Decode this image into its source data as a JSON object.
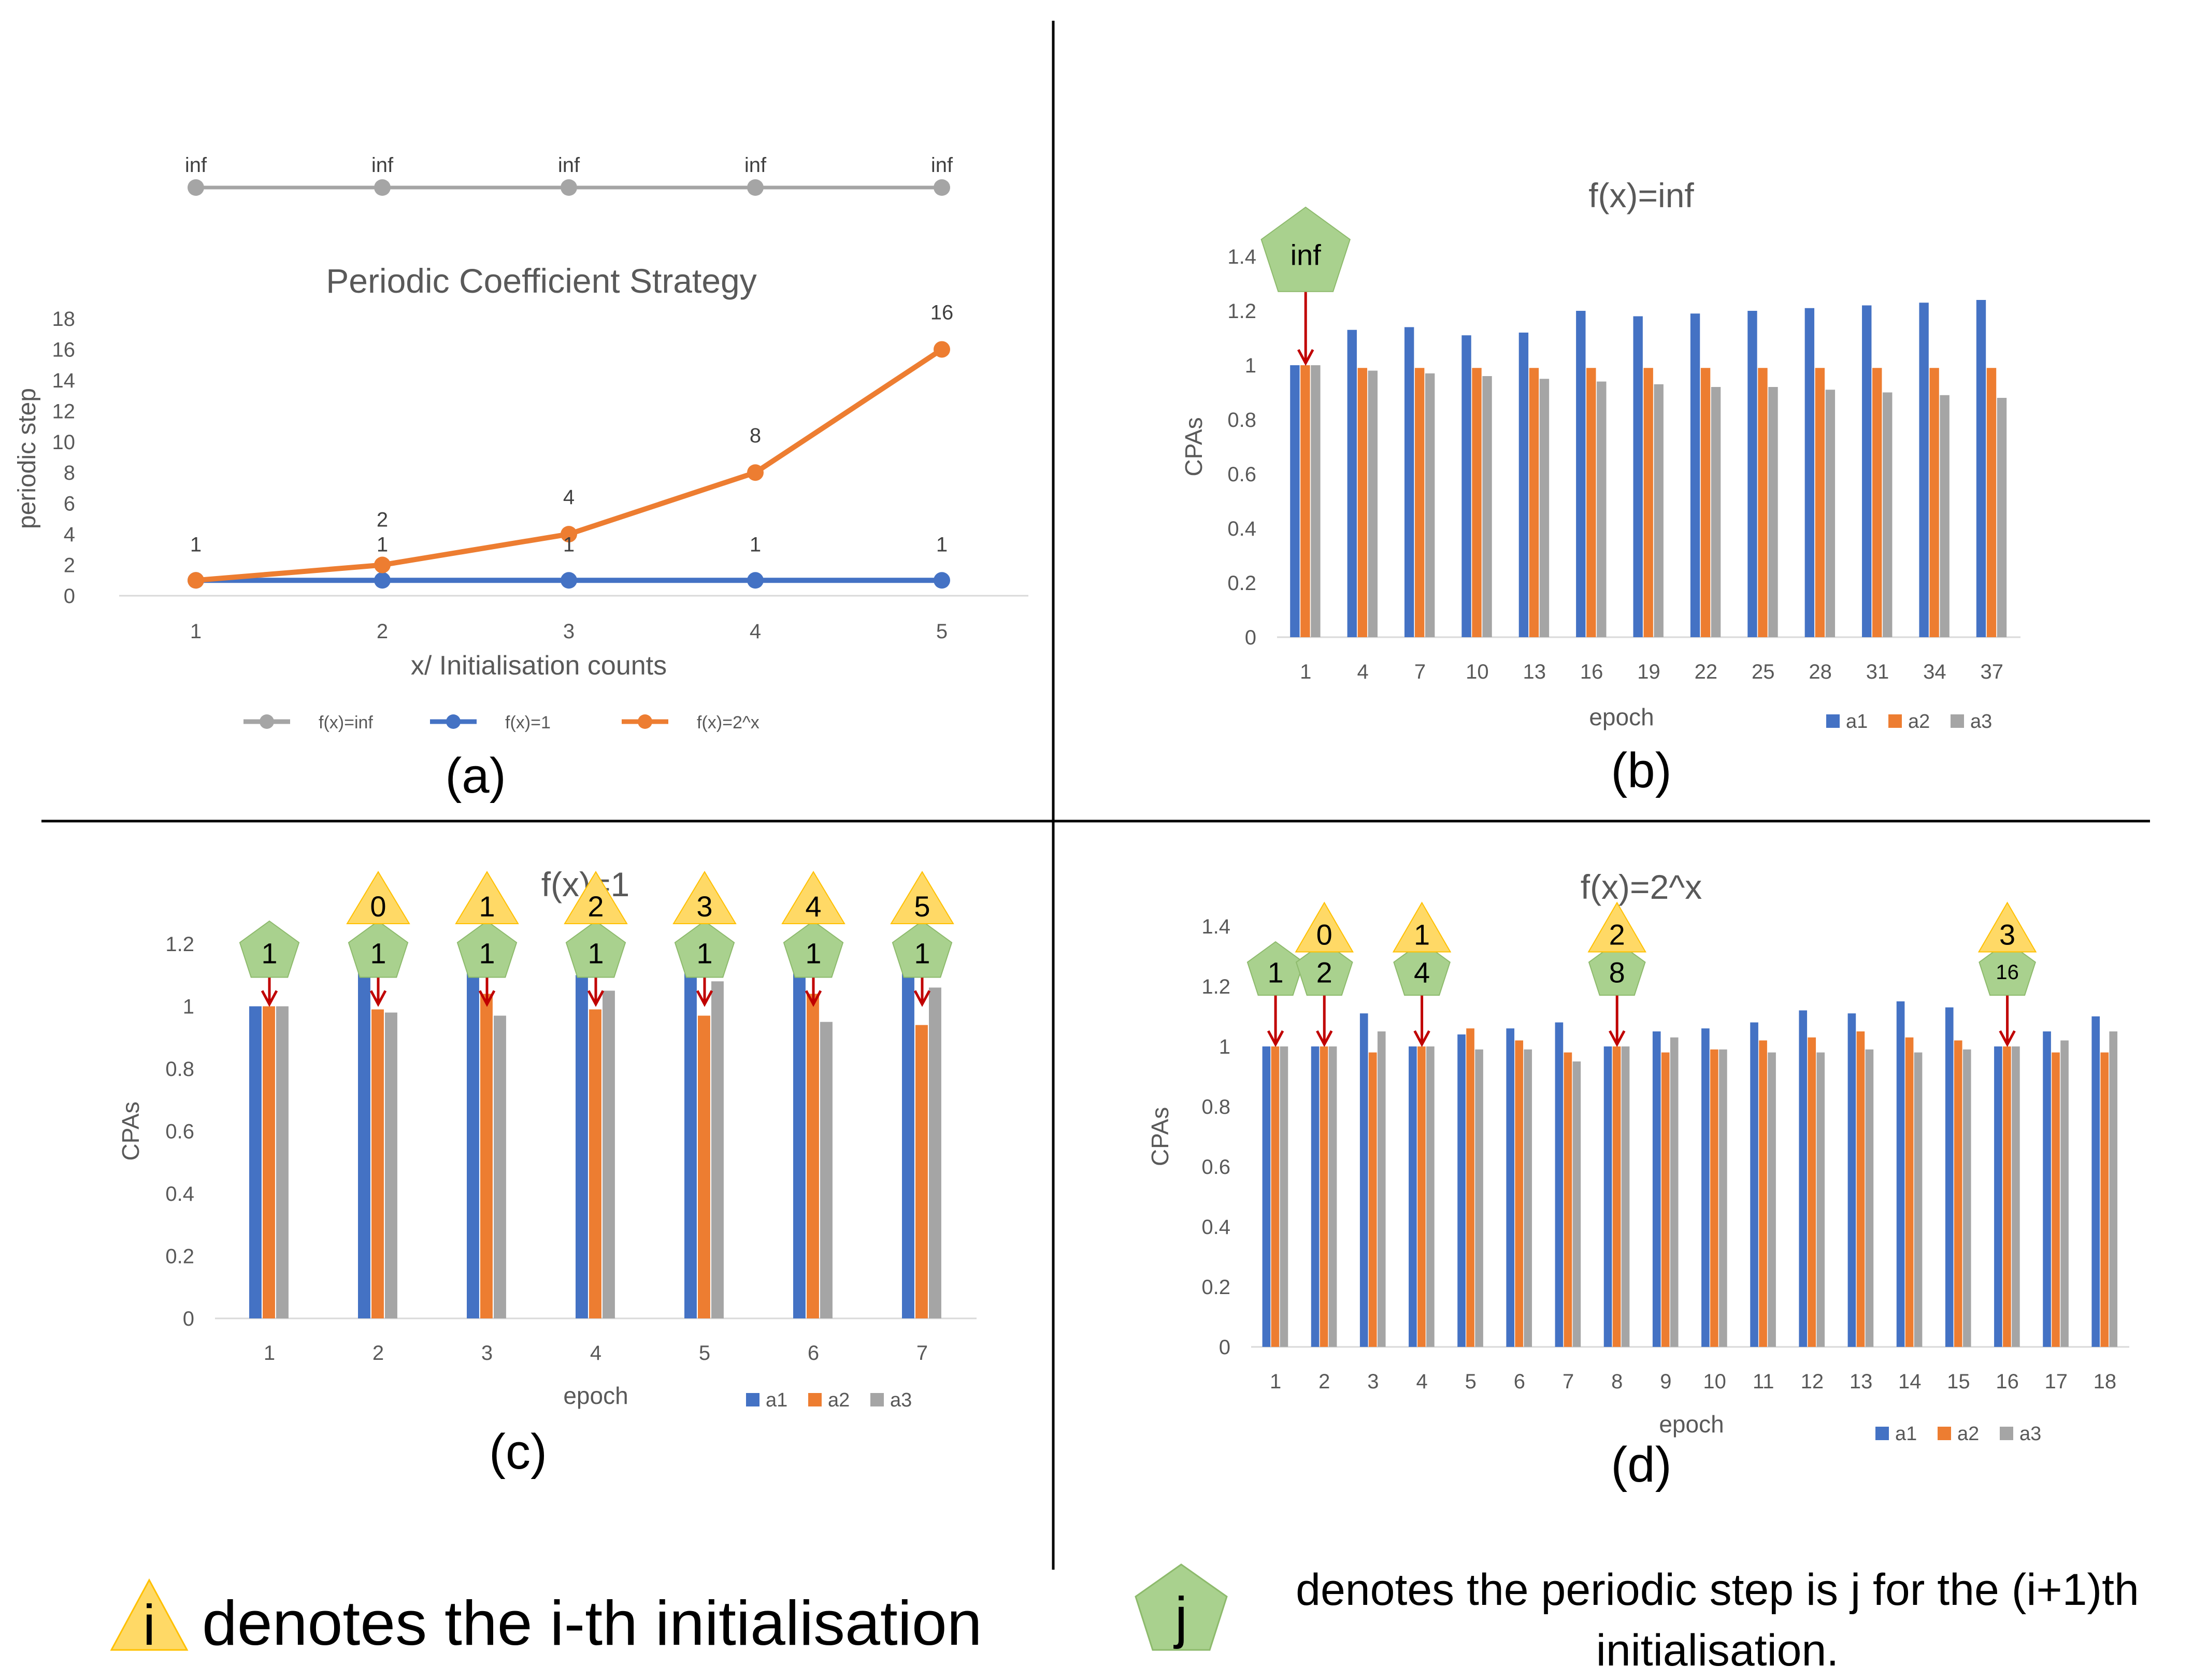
{
  "panel_labels": {
    "a": "(a)",
    "b": "(b)",
    "c": "(c)",
    "d": "(d)"
  },
  "legend": {
    "triangle_symbol": "i",
    "triangle_text": "denotes the i-th initialisation",
    "pentagon_symbol": "j",
    "pentagon_text_line1": "denotes the periodic step is j for the (i+1)th",
    "pentagon_text_line2": "initialisation."
  },
  "colors": {
    "a1": "#4472C4",
    "a2": "#ED7D31",
    "a3": "#A5A5A5",
    "arrow": "#C00000",
    "triangle": "#FFD966",
    "pentagon": "#A9D18E",
    "axis_text": "#595959"
  },
  "chart_data": [
    {
      "type": "line",
      "title": "Periodic Coefficient Strategy",
      "xlabel": "x/ Initialisation counts",
      "ylabel": "periodic step",
      "x": [
        1,
        2,
        3,
        4,
        5
      ],
      "ylim": [
        0,
        18
      ],
      "yticks": [
        0,
        2,
        4,
        6,
        8,
        10,
        12,
        14,
        16,
        18
      ],
      "series": [
        {
          "name": "f(x)=inf",
          "values": [
            null,
            null,
            null,
            null,
            null
          ],
          "labels": [
            "inf",
            "inf",
            "inf",
            "inf",
            "inf"
          ],
          "color": "#A5A5A5"
        },
        {
          "name": "f(x)=1",
          "values": [
            1,
            1,
            1,
            1,
            1
          ],
          "labels": [
            "1",
            "1",
            "1",
            "1",
            "1"
          ],
          "color": "#4472C4"
        },
        {
          "name": "f(x)=2^x",
          "values": [
            1,
            2,
            4,
            8,
            16
          ],
          "labels": [
            "1",
            "2",
            "4",
            "8",
            "16"
          ],
          "color": "#ED7D31"
        }
      ]
    },
    {
      "type": "bar",
      "title": "f(x)=inf",
      "xlabel": "epoch",
      "ylabel": "CPAs",
      "categories": [
        "1",
        "4",
        "7",
        "10",
        "13",
        "16",
        "19",
        "22",
        "25",
        "28",
        "31",
        "34",
        "37"
      ],
      "ylim": [
        0,
        1.4
      ],
      "yticks": [
        "0",
        "0.2",
        "0.4",
        "0.6",
        "0.8",
        "1",
        "1.2",
        "1.4"
      ],
      "series": [
        {
          "name": "a1",
          "values": [
            1.0,
            1.13,
            1.14,
            1.11,
            1.12,
            1.2,
            1.18,
            1.19,
            1.2,
            1.21,
            1.22,
            1.23,
            1.24
          ]
        },
        {
          "name": "a2",
          "values": [
            1.0,
            0.99,
            0.99,
            0.99,
            0.99,
            0.99,
            0.99,
            0.99,
            0.99,
            0.99,
            0.99,
            0.99,
            0.99
          ]
        },
        {
          "name": "a3",
          "values": [
            1.0,
            0.98,
            0.97,
            0.96,
            0.95,
            0.94,
            0.93,
            0.92,
            0.92,
            0.91,
            0.9,
            0.89,
            0.88
          ]
        }
      ],
      "annotations": [
        {
          "category": "1",
          "pentagon": "inf"
        }
      ]
    },
    {
      "type": "bar",
      "title": "f(x)=1",
      "xlabel": "epoch",
      "ylabel": "CPAs",
      "categories": [
        "1",
        "2",
        "3",
        "4",
        "5",
        "6",
        "7"
      ],
      "ylim": [
        0,
        1.2
      ],
      "yticks": [
        "0",
        "0.2",
        "0.4",
        "0.6",
        "0.8",
        "1",
        "1.2"
      ],
      "series": [
        {
          "name": "a1",
          "values": [
            1.0,
            1.13,
            1.11,
            1.1,
            1.11,
            1.11,
            1.11
          ]
        },
        {
          "name": "a2",
          "values": [
            1.0,
            0.99,
            1.04,
            0.99,
            0.97,
            1.04,
            0.94
          ]
        },
        {
          "name": "a3",
          "values": [
            1.0,
            0.98,
            0.97,
            1.05,
            1.08,
            0.95,
            1.06
          ]
        }
      ],
      "annotations": [
        {
          "category": "1",
          "pentagon": "1"
        },
        {
          "category": "2",
          "pentagon": "1",
          "triangle": "0"
        },
        {
          "category": "3",
          "pentagon": "1",
          "triangle": "1"
        },
        {
          "category": "4",
          "pentagon": "1",
          "triangle": "2"
        },
        {
          "category": "5",
          "pentagon": "1",
          "triangle": "3"
        },
        {
          "category": "6",
          "pentagon": "1",
          "triangle": "4"
        },
        {
          "category": "7",
          "pentagon": "1",
          "triangle": "5"
        }
      ]
    },
    {
      "type": "bar",
      "title": "f(x)=2^x",
      "xlabel": "epoch",
      "ylabel": "CPAs",
      "categories": [
        "1",
        "2",
        "3",
        "4",
        "5",
        "6",
        "7",
        "8",
        "9",
        "10",
        "11",
        "12",
        "13",
        "14",
        "15",
        "16",
        "17",
        "18"
      ],
      "ylim": [
        0,
        1.4
      ],
      "yticks": [
        "0",
        "0.2",
        "0.4",
        "0.6",
        "0.8",
        "1",
        "1.2",
        "1.4"
      ],
      "series": [
        {
          "name": "a1",
          "values": [
            1.0,
            1.0,
            1.11,
            1.0,
            1.04,
            1.06,
            1.08,
            1.0,
            1.05,
            1.06,
            1.08,
            1.12,
            1.11,
            1.15,
            1.13,
            1.0,
            1.05,
            1.1
          ]
        },
        {
          "name": "a2",
          "values": [
            1.0,
            1.0,
            0.98,
            1.0,
            1.06,
            1.02,
            0.98,
            1.0,
            0.98,
            0.99,
            1.02,
            1.03,
            1.05,
            1.03,
            1.02,
            1.0,
            0.98,
            0.98
          ]
        },
        {
          "name": "a3",
          "values": [
            1.0,
            1.0,
            1.05,
            1.0,
            0.99,
            0.99,
            0.95,
            1.0,
            1.03,
            0.99,
            0.98,
            0.98,
            0.99,
            0.98,
            0.99,
            1.0,
            1.02,
            1.05
          ]
        }
      ],
      "annotations": [
        {
          "category": "1",
          "pentagon": "1"
        },
        {
          "category": "2",
          "pentagon": "2",
          "triangle": "0"
        },
        {
          "category": "4",
          "pentagon": "4",
          "triangle": "1"
        },
        {
          "category": "8",
          "pentagon": "8",
          "triangle": "2"
        },
        {
          "category": "16",
          "pentagon": "16",
          "triangle": "3"
        }
      ]
    }
  ]
}
